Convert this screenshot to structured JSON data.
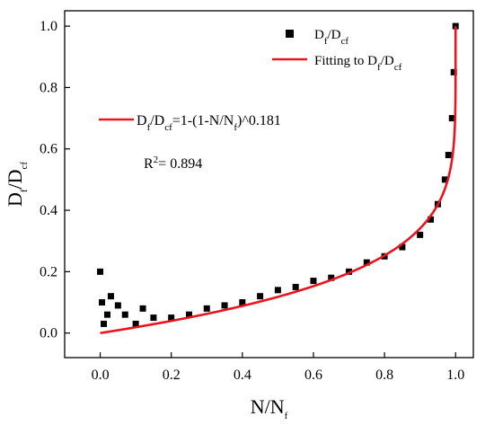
{
  "chart_data": {
    "type": "scatter",
    "title": "",
    "xlabel": "N/N_f",
    "ylabel": "D_f/D_cf",
    "xlim": [
      -0.1,
      1.05
    ],
    "ylim": [
      -0.08,
      1.05
    ],
    "x_ticks": [
      "0.0",
      "0.2",
      "0.4",
      "0.6",
      "0.8",
      "1.0"
    ],
    "y_ticks": [
      "0.0",
      "0.2",
      "0.4",
      "0.6",
      "0.8",
      "1.0"
    ],
    "x_tick_values": [
      0.0,
      0.2,
      0.4,
      0.6,
      0.8,
      1.0
    ],
    "y_tick_values": [
      0.0,
      0.2,
      0.4,
      0.6,
      0.8,
      1.0
    ],
    "legend_position": "top-right",
    "series": [
      {
        "name": "D_f/D_cf",
        "kind": "scatter",
        "color": "#000000",
        "marker": "square",
        "x": [
          0.0,
          0.005,
          0.01,
          0.02,
          0.03,
          0.05,
          0.07,
          0.1,
          0.12,
          0.15,
          0.2,
          0.25,
          0.3,
          0.35,
          0.4,
          0.45,
          0.5,
          0.55,
          0.6,
          0.65,
          0.7,
          0.75,
          0.8,
          0.85,
          0.9,
          0.93,
          0.95,
          0.97,
          0.98,
          0.99,
          0.995,
          1.0
        ],
        "y": [
          0.2,
          0.1,
          0.03,
          0.06,
          0.12,
          0.09,
          0.06,
          0.03,
          0.08,
          0.05,
          0.05,
          0.06,
          0.08,
          0.09,
          0.1,
          0.12,
          0.14,
          0.15,
          0.17,
          0.18,
          0.2,
          0.23,
          0.25,
          0.28,
          0.32,
          0.37,
          0.42,
          0.5,
          0.58,
          0.7,
          0.85,
          1.0
        ]
      },
      {
        "name": "Fitting to D_f/D_cf",
        "kind": "line",
        "color": "#e8141e",
        "equation_exponent": 0.181
      }
    ],
    "annotations": {
      "equation_lhs": "D_f/D_cf",
      "equation_rhs": "=1-(1-N/N_f)^0.181",
      "r2_value": "0.894"
    }
  }
}
